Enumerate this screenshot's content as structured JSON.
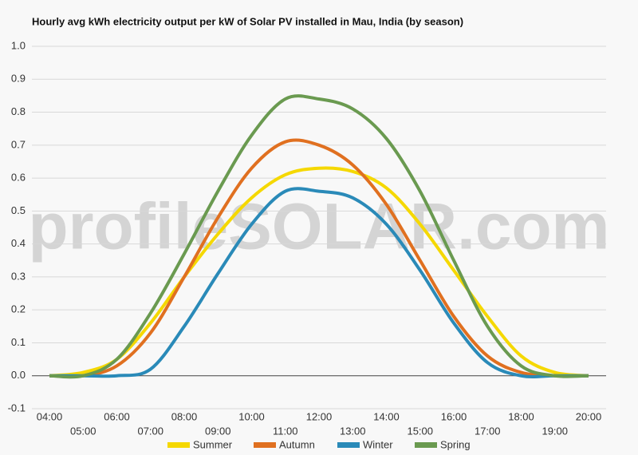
{
  "chart_data": {
    "type": "line",
    "title": "Hourly avg kWh electricity output per kW of Solar PV installed in Mau, India (by season)",
    "watermark": "profileSOLAR.com",
    "categories": [
      "04:00",
      "05:00",
      "06:00",
      "07:00",
      "08:00",
      "09:00",
      "10:00",
      "11:00",
      "12:00",
      "13:00",
      "14:00",
      "15:00",
      "16:00",
      "17:00",
      "18:00",
      "19:00",
      "20:00"
    ],
    "series": [
      {
        "name": "Summer",
        "color": "#f5d800",
        "values": [
          0,
          0.01,
          0.05,
          0.16,
          0.3,
          0.43,
          0.54,
          0.61,
          0.63,
          0.62,
          0.57,
          0.46,
          0.32,
          0.18,
          0.06,
          0.01,
          0
        ]
      },
      {
        "name": "Autumn",
        "color": "#e07020",
        "values": [
          0,
          0,
          0.03,
          0.13,
          0.3,
          0.48,
          0.63,
          0.71,
          0.7,
          0.64,
          0.52,
          0.35,
          0.18,
          0.06,
          0.01,
          0,
          0
        ]
      },
      {
        "name": "Winter",
        "color": "#2a8ab8",
        "values": [
          0,
          0,
          0,
          0.02,
          0.15,
          0.31,
          0.46,
          0.56,
          0.56,
          0.54,
          0.46,
          0.32,
          0.16,
          0.04,
          0,
          0,
          0
        ]
      },
      {
        "name": "Spring",
        "color": "#6a9a50",
        "values": [
          0,
          0,
          0.05,
          0.19,
          0.37,
          0.56,
          0.73,
          0.84,
          0.84,
          0.81,
          0.72,
          0.56,
          0.35,
          0.15,
          0.03,
          0,
          0
        ]
      }
    ],
    "ylim": [
      -0.1,
      1.0
    ],
    "yticks": [
      -0.1,
      {
        "value": 0,
        "label": "0.0"
      },
      0.1,
      0.2,
      0.3,
      0.4,
      0.5,
      0.6,
      0.7,
      0.8,
      0.9,
      {
        "value": 1,
        "label": "1.0"
      }
    ],
    "grid": true,
    "legend": "bottom"
  }
}
